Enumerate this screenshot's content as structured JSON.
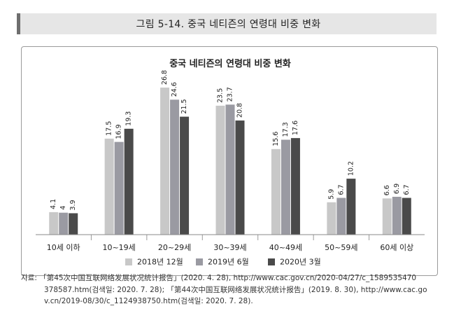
{
  "figure_title": "그림 5-14. 중국 네티즌의 연령대 비중 변화",
  "chart_data": {
    "type": "bar",
    "title": "중국 네티즌의 연령대 비중 변화",
    "categories": [
      "10세 이하",
      "10~19세",
      "20~29세",
      "30~39세",
      "40~49세",
      "50~59세",
      "60세 이상"
    ],
    "series": [
      {
        "name": "2018년 12월",
        "values": [
          4.1,
          17.5,
          26.8,
          23.5,
          15.6,
          5.9,
          6.6
        ],
        "color": "#c8c8c8"
      },
      {
        "name": "2019년 6월",
        "values": [
          4,
          16.9,
          24.6,
          23.7,
          17.3,
          6.7,
          6.9
        ],
        "color": "#9a9aa2"
      },
      {
        "name": "2020년 3월",
        "values": [
          3.9,
          19.3,
          21.5,
          20.8,
          17.6,
          10.2,
          6.7
        ],
        "color": "#4a4a4a"
      }
    ],
    "ylim": [
      0,
      30
    ],
    "grid": false,
    "legend_position": "bottom"
  },
  "source": {
    "line1": "자료: 「第45次中国互联网络发展状况统计报告」(2020. 4. 28), http://www.cac.gov.cn/2020-04/27/c_1589535470",
    "line2": "378587.htm(검색일: 2020. 7. 28); 「第44次中国互联网络发展状况统计报告」(2019. 8. 30), http://www.cac.go",
    "line3": "v.cn/2019-08/30/c_1124938750.htm(검색일: 2020. 7. 28)."
  }
}
